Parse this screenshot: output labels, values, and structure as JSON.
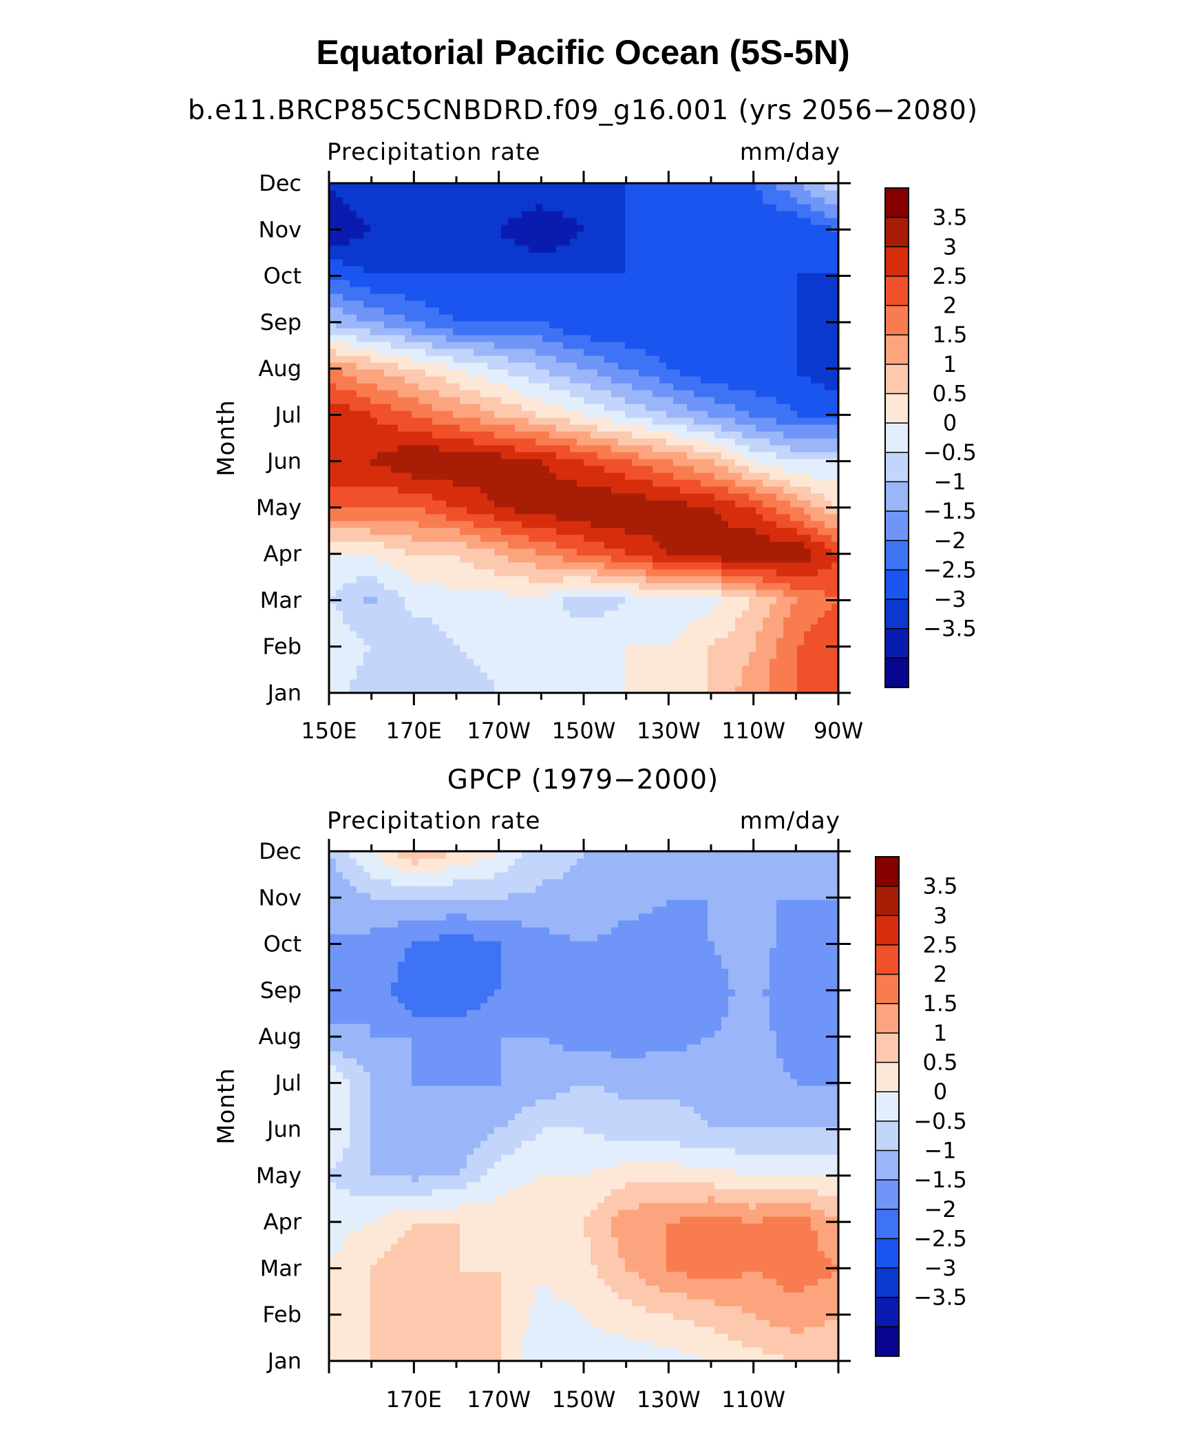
{
  "figure": {
    "title": "Equatorial Pacific Ocean (5S-5N)"
  },
  "colors": {
    "levels": [
      -3.5,
      -3,
      -2.5,
      -2,
      -1.5,
      -1,
      -0.5,
      0,
      0.5,
      1,
      1.5,
      2,
      2.5,
      3,
      3.5
    ],
    "palette": [
      "#08068f",
      "#0a1caf",
      "#0b38cf",
      "#1a55f0",
      "#3f73f5",
      "#6e95f7",
      "#9ab6f9",
      "#c3d5fb",
      "#e3eefc",
      "#fde8d8",
      "#fcc9ae",
      "#fca47e",
      "#f97c50",
      "#f0502a",
      "#d62e0c",
      "#a81d05",
      "#870000"
    ],
    "colorbar_labels": [
      "3.5",
      "3",
      "2.5",
      "2",
      "1.5",
      "1",
      "0.5",
      "0",
      "−0.5",
      "−1",
      "−1.5",
      "−2",
      "−2.5",
      "−3",
      "−3.5"
    ]
  },
  "chart_data": [
    {
      "type": "heatmap",
      "title": "b.e11.BRCP85C5CNBDRD.f09_g16.001 (yrs 2056−2080)",
      "left_label": "Precipitation rate",
      "right_label": "mm/day",
      "ylabel": "Month",
      "x_range_lon": [
        150,
        270
      ],
      "x_tick_values": [
        150,
        170,
        190,
        210,
        230,
        250,
        270
      ],
      "x_tick_labels": [
        "150E",
        "170E",
        "170W",
        "150W",
        "130W",
        "110W",
        "90W"
      ],
      "y_tick_labels": [
        "Jan",
        "Feb",
        "Mar",
        "Apr",
        "May",
        "Jun",
        "Jul",
        "Aug",
        "Sep",
        "Oct",
        "Nov",
        "Dec"
      ],
      "lon": [
        150,
        160,
        170,
        180,
        190,
        200,
        210,
        220,
        230,
        240,
        250,
        260,
        270
      ],
      "rows": [
        [
          0.5,
          -0.5,
          -0.5,
          -0.5,
          0,
          0,
          0,
          0.5,
          1,
          1,
          1.8,
          2.5,
          2.5
        ],
        [
          0.5,
          0,
          -0.5,
          0,
          0.3,
          0,
          0.5,
          0.5,
          0.5,
          1,
          1.5,
          2.5,
          3
        ],
        [
          0,
          -0.6,
          0.2,
          0.3,
          0.3,
          0.3,
          -0.4,
          0,
          0.2,
          0.3,
          1,
          2,
          2.5
        ],
        [
          0.5,
          0.5,
          1,
          1,
          1.5,
          2,
          2.5,
          3,
          3.5,
          3.8,
          4,
          4,
          3
        ],
        [
          2.5,
          2.5,
          2.5,
          3,
          3.5,
          3.8,
          4,
          4,
          3.8,
          3.5,
          3,
          2,
          1
        ],
        [
          3.5,
          3.5,
          4,
          4,
          3.8,
          3.5,
          3,
          2.5,
          2,
          1.5,
          0.5,
          0,
          0
        ],
        [
          3.5,
          3,
          2.5,
          2,
          1.5,
          1,
          0.5,
          0,
          -0.5,
          -1,
          -1.5,
          -2,
          -2
        ],
        [
          2,
          1.5,
          1,
          0.5,
          0,
          -0.5,
          -1,
          -1.5,
          -2,
          -2.5,
          -2.5,
          -2.5,
          -3
        ],
        [
          -0.5,
          -1,
          -1.5,
          -2,
          -2,
          -2,
          -2.5,
          -2.5,
          -2.5,
          -2.5,
          -2.5,
          -2.5,
          -3
        ],
        [
          -2,
          -2.5,
          -2.5,
          -2.5,
          -2.5,
          -2.5,
          -2.5,
          -2.5,
          -2.5,
          -2.5,
          -2.5,
          -2.5,
          -2.5
        ],
        [
          -3.5,
          -3,
          -2.5,
          -3,
          -3,
          -3.5,
          -3,
          -2.5,
          -2.5,
          -2.5,
          -2.5,
          -2.5,
          -2
        ],
        [
          -3,
          -2.5,
          -2.5,
          -2.5,
          -2.5,
          -2.5,
          -2.5,
          -2.5,
          -2.5,
          -2.5,
          -2,
          -1,
          0
        ]
      ]
    },
    {
      "type": "heatmap",
      "title": "GPCP (1979−2000)",
      "left_label": "Precipitation rate",
      "right_label": "mm/day",
      "ylabel": "Month",
      "x_range_lon": [
        150,
        270
      ],
      "x_tick_values": [
        170,
        190,
        210,
        230,
        250
      ],
      "x_tick_labels": [
        "170E",
        "170W",
        "150W",
        "130W",
        "110W"
      ],
      "y_tick_labels": [
        "Jan",
        "Feb",
        "Mar",
        "Apr",
        "May",
        "Jun",
        "Jul",
        "Aug",
        "Sep",
        "Oct",
        "Nov",
        "Dec"
      ],
      "lon": [
        150,
        160,
        170,
        180,
        190,
        200,
        210,
        220,
        230,
        240,
        250,
        260,
        270
      ],
      "rows": [
        [
          0.5,
          1,
          1,
          1.5,
          1,
          0,
          0.2,
          0.2,
          0.3,
          0.5,
          0.8,
          1,
          1
        ],
        [
          1,
          1,
          1.5,
          1.3,
          1,
          0.3,
          0.5,
          0.8,
          1,
          1.2,
          1.5,
          1.8,
          1.5
        ],
        [
          0.5,
          1,
          1.5,
          1,
          1,
          0.6,
          0.8,
          1.5,
          2,
          2.3,
          2,
          2.3,
          2
        ],
        [
          0.3,
          0.5,
          1,
          1,
          0.8,
          0.8,
          1,
          1.8,
          2,
          2.3,
          2,
          2.3,
          1.5
        ],
        [
          0,
          -0.5,
          -0.6,
          -0.5,
          0.3,
          0.5,
          0.5,
          0.8,
          0.8,
          0.7,
          0.5,
          0.5,
          0.5
        ],
        [
          0.5,
          -0.5,
          -1,
          -1,
          -0.5,
          0,
          0,
          -0.3,
          -0.3,
          -0.5,
          -0.5,
          -0.5,
          -0.5
        ],
        [
          0.5,
          -0.5,
          -1,
          -1,
          -1,
          -0.8,
          -0.5,
          -0.6,
          -0.6,
          -0.6,
          -0.8,
          -1,
          -1
        ],
        [
          -0.8,
          -1,
          -1,
          -1.2,
          -1,
          -1,
          -1.2,
          -1.3,
          -1.2,
          -1,
          -0.8,
          -1.2,
          -1.2
        ],
        [
          -1.5,
          -1,
          -2,
          -2,
          -1.5,
          -1,
          -1.5,
          -1.5,
          -1.5,
          -1.2,
          -0.8,
          -1.5,
          -1.2
        ],
        [
          -1,
          -1.2,
          -1.5,
          -1.8,
          -1.5,
          -1.2,
          -1,
          -1.2,
          -1.2,
          -1,
          -0.8,
          -1.2,
          -1
        ],
        [
          -1,
          -0.5,
          -0.5,
          -0.5,
          -0.5,
          -0.6,
          -0.6,
          -0.8,
          -1,
          -1,
          -1,
          -1,
          -1
        ],
        [
          -0.5,
          0.5,
          1.5,
          1,
          0.5,
          -0.3,
          -0.5,
          -0.5,
          -0.6,
          -0.8,
          -1,
          -1,
          -1
        ]
      ]
    }
  ]
}
